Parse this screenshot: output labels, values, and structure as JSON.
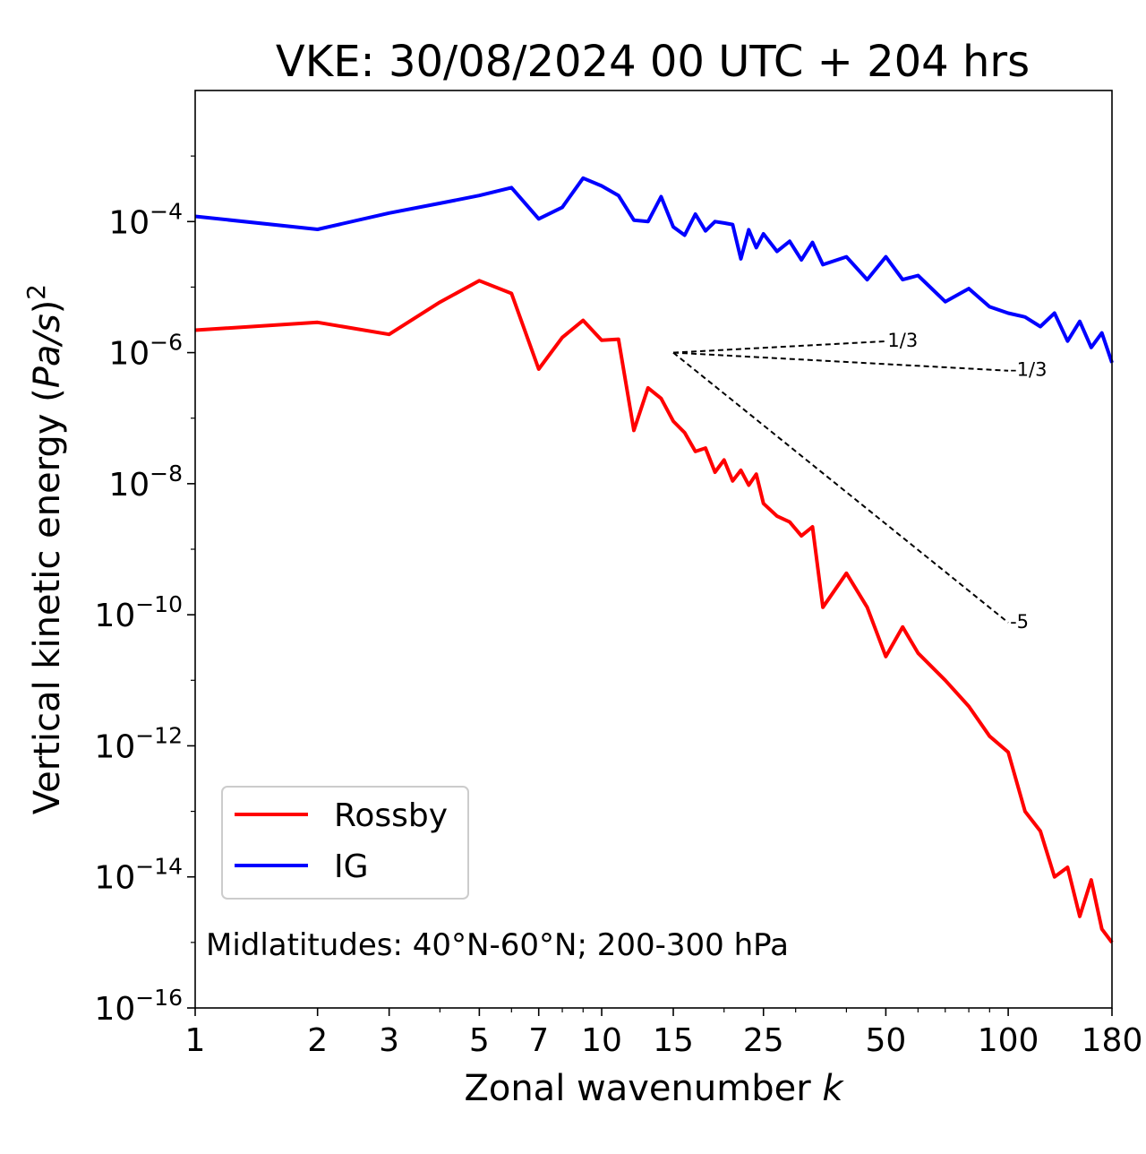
{
  "chart_data": {
    "type": "line",
    "title": "VKE: 30/08/2024 00 UTC + 204 hrs",
    "xlabel": "Zonal wavenumber k",
    "ylabel": "Vertical kinetic energy (Pa/s)^2",
    "x_scale": "log",
    "y_scale": "log",
    "xlim": [
      1,
      180
    ],
    "ylim": [
      1e-16,
      0.01
    ],
    "x_ticks": [
      {
        "value": 1,
        "label": "1"
      },
      {
        "value": 2,
        "label": "2"
      },
      {
        "value": 3,
        "label": "3"
      },
      {
        "value": 5,
        "label": "5"
      },
      {
        "value": 7,
        "label": "7"
      },
      {
        "value": 10,
        "label": "10"
      },
      {
        "value": 15,
        "label": "15"
      },
      {
        "value": 25,
        "label": "25"
      },
      {
        "value": 50,
        "label": "50"
      },
      {
        "value": 100,
        "label": "100"
      },
      {
        "value": 180,
        "label": "180"
      }
    ],
    "y_ticks": [
      {
        "exp": -4,
        "base": "10",
        "sup": "−4"
      },
      {
        "exp": -6,
        "base": "10",
        "sup": "−6"
      },
      {
        "exp": -8,
        "base": "10",
        "sup": "−8"
      },
      {
        "exp": -10,
        "base": "10",
        "sup": "−10"
      },
      {
        "exp": -12,
        "base": "10",
        "sup": "−12"
      },
      {
        "exp": -14,
        "base": "10",
        "sup": "−14"
      },
      {
        "exp": -16,
        "base": "10",
        "sup": "−16"
      }
    ],
    "series": [
      {
        "name": "Rossby",
        "color": "#ff0000",
        "x": [
          1,
          2,
          3,
          4,
          5,
          6,
          7,
          8,
          9,
          10,
          11,
          12,
          13,
          14,
          15,
          16,
          17,
          18,
          19,
          20,
          21,
          22,
          23,
          24,
          25,
          27,
          29,
          31,
          33,
          35,
          40,
          45,
          50,
          55,
          60,
          70,
          80,
          90,
          100,
          110,
          120,
          130,
          140,
          150,
          160,
          170,
          180
        ],
        "y": [
          2.2e-06,
          2.9e-06,
          1.9e-06,
          5.9e-06,
          1.25e-05,
          8e-06,
          5.6e-07,
          1.7e-06,
          3.1e-06,
          1.55e-06,
          1.6e-06,
          6.5e-08,
          2.9e-07,
          2e-07,
          9e-08,
          6e-08,
          3.1e-08,
          3.5e-08,
          1.5e-08,
          2.3e-08,
          1.1e-08,
          1.6e-08,
          9.5e-09,
          1.4e-08,
          5e-09,
          3.2e-09,
          2.6e-09,
          1.6e-09,
          2.2e-09,
          1.3e-10,
          4.3e-10,
          1.3e-10,
          2.3e-11,
          6.5e-11,
          2.6e-11,
          1e-11,
          4e-12,
          1.4e-12,
          8e-13,
          1e-13,
          5e-14,
          1e-14,
          1.4e-14,
          2.5e-15,
          9e-15,
          1.6e-15,
          1e-15
        ]
      },
      {
        "name": "IG",
        "color": "#0000ff",
        "x": [
          1,
          2,
          3,
          4,
          5,
          6,
          7,
          8,
          9,
          10,
          11,
          12,
          13,
          14,
          15,
          16,
          17,
          18,
          19,
          20,
          21,
          22,
          23,
          24,
          25,
          27,
          29,
          31,
          33,
          35,
          40,
          45,
          50,
          55,
          60,
          70,
          80,
          90,
          100,
          110,
          120,
          130,
          140,
          150,
          160,
          170,
          180
        ],
        "y": [
          0.00012,
          7.6e-05,
          0.000135,
          0.00019,
          0.00025,
          0.00033,
          0.00011,
          0.000165,
          0.00046,
          0.00035,
          0.00025,
          0.000105,
          0.0001,
          0.00024,
          8.3e-05,
          6.2e-05,
          0.00013,
          7.2e-05,
          0.0001,
          9.5e-05,
          9e-05,
          2.7e-05,
          7.5e-05,
          4e-05,
          6.5e-05,
          3.5e-05,
          5e-05,
          2.6e-05,
          4.8e-05,
          2.2e-05,
          2.9e-05,
          1.3e-05,
          2.9e-05,
          1.3e-05,
          1.5e-05,
          6e-06,
          9.5e-06,
          5e-06,
          4e-06,
          3.5e-06,
          2.5e-06,
          4e-06,
          1.5e-06,
          3e-06,
          1.2e-06,
          2e-06,
          7e-07
        ]
      }
    ],
    "reference_lines": [
      {
        "label": "1/3",
        "x": [
          15,
          50
        ],
        "y": [
          1e-06,
          1.49e-06
        ]
      },
      {
        "label": "-1/3",
        "x": [
          15,
          100
        ],
        "y": [
          1e-06,
          5.3e-07
        ]
      },
      {
        "label": "-5",
        "x": [
          15,
          100
        ],
        "y": [
          1e-06,
          7.6e-11
        ]
      }
    ],
    "legend": {
      "position": "lower-left",
      "entries": [
        "Rossby",
        "IG"
      ]
    },
    "annotation": "Midlatitudes: 40°N-60°N; 200-300 hPa",
    "grid": false
  }
}
